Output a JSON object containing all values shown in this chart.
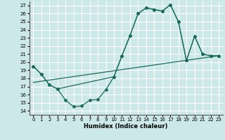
{
  "xlabel": "Humidex (Indice chaleur)",
  "ylabel": "",
  "bg_color": "#cce8e8",
  "grid_color": "#ffffff",
  "line_color": "#1a6b5a",
  "xlim": [
    -0.5,
    23.5
  ],
  "ylim": [
    13.5,
    27.5
  ],
  "xticks": [
    0,
    1,
    2,
    3,
    4,
    5,
    6,
    7,
    8,
    9,
    10,
    11,
    12,
    13,
    14,
    15,
    16,
    17,
    18,
    19,
    20,
    21,
    22,
    23
  ],
  "yticks": [
    14,
    15,
    16,
    17,
    18,
    19,
    20,
    21,
    22,
    23,
    24,
    25,
    26,
    27
  ],
  "line1_x": [
    0,
    1,
    2,
    3,
    4,
    5,
    6,
    7,
    8,
    9,
    10,
    11,
    12,
    13,
    14,
    15,
    16,
    17,
    18,
    19,
    20,
    21,
    22,
    23
  ],
  "line1_y": [
    19.5,
    18.5,
    17.2,
    16.7,
    15.3,
    14.5,
    14.6,
    15.3,
    15.4,
    16.6,
    18.2,
    20.8,
    23.3,
    26.0,
    26.7,
    26.5,
    26.3,
    27.1,
    25.0,
    20.2,
    23.2,
    21.0,
    20.8,
    20.8
  ],
  "line2_x": [
    0,
    1,
    2,
    3,
    10,
    11,
    12,
    13,
    14,
    15,
    16,
    17,
    18,
    19,
    20,
    21,
    22,
    23
  ],
  "line2_y": [
    19.5,
    18.5,
    17.2,
    16.7,
    18.2,
    20.8,
    23.3,
    26.0,
    26.7,
    26.5,
    26.3,
    27.1,
    25.0,
    20.2,
    23.2,
    21.0,
    20.8,
    20.8
  ],
  "line3_x": [
    0,
    23
  ],
  "line3_y": [
    17.5,
    20.8
  ]
}
